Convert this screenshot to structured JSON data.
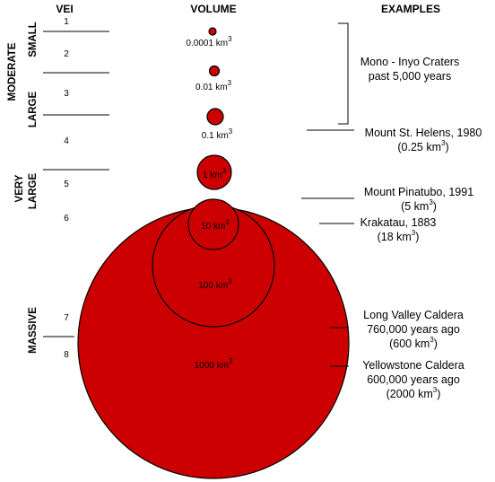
{
  "headers": {
    "vei": "VEI",
    "volume": "VOLUME",
    "examples": "EXAMPLES"
  },
  "categories": {
    "moderate": "MODERATE",
    "small": "SMALL",
    "large": "LARGE",
    "very": "VERY",
    "very_large": "LARGE",
    "massive": "MASSIVE"
  },
  "vei_numbers": [
    "1",
    "2",
    "3",
    "4",
    "5",
    "6",
    "7",
    "8"
  ],
  "volumes": [
    {
      "value": "0.0001 km",
      "exp": "3"
    },
    {
      "value": "0.01 km",
      "exp": "3"
    },
    {
      "value": "0.1 km",
      "exp": "3"
    },
    {
      "value": "1 km",
      "exp": "3"
    },
    {
      "value": "10 km",
      "exp": "3"
    },
    {
      "value": "100 km",
      "exp": "3"
    },
    {
      "value": "1000 km",
      "exp": "3"
    }
  ],
  "examples": {
    "mono_1": "Mono - Inyo Craters",
    "mono_2": "past 5,000 years",
    "helens_1": "Mount St. Helens, 1980",
    "helens_2": "(0.25 km",
    "helens_close": ")",
    "pinatubo_1": "Mount Pinatubo, 1991",
    "pinatubo_2": "(5 km",
    "pinatubo_close": ")",
    "krakatau_1": "Krakatau, 1883",
    "krakatau_2": "(18 km",
    "krakatau_close": ")",
    "longvalley_1": "Long Valley Caldera",
    "longvalley_2": "760,000 years ago",
    "longvalley_3": "(600 km",
    "longvalley_close": ")",
    "yellowstone_1": "Yellowstone Caldera",
    "yellowstone_2": "600,000 years ago",
    "yellowstone_3": "(2000 km",
    "yellowstone_close": ")",
    "exp": "3"
  },
  "colors": {
    "circle_fill": "#cc0000",
    "stroke": "#000000"
  }
}
